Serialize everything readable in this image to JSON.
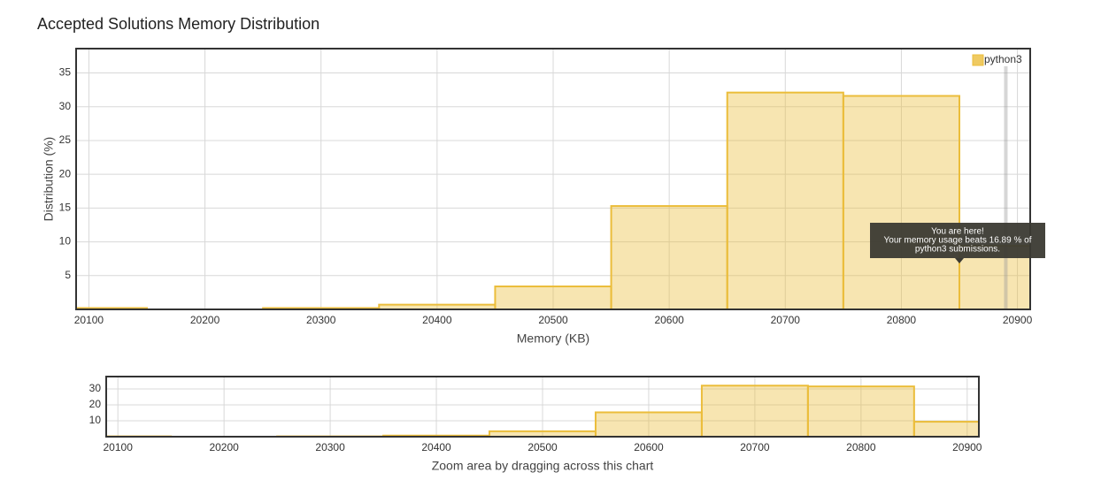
{
  "chart_data": [
    {
      "type": "histogram",
      "title": "Accepted Solutions Memory Distribution",
      "x_label": "Memory (KB)",
      "y_label": "Distribution (%)",
      "bins": [
        20050,
        20150,
        20250,
        20350,
        20450,
        20550,
        20650,
        20750,
        20850,
        20950
      ],
      "series": [
        {
          "name": "python3",
          "color": "#ebbd3b",
          "values": [
            0.2,
            0,
            0.2,
            0.7,
            3.4,
            15.3,
            32.1,
            31.6,
            9.4
          ]
        }
      ],
      "xlim": [
        20089,
        20911
      ],
      "xticks": [
        20100,
        20200,
        20300,
        20400,
        20500,
        20600,
        20700,
        20800,
        20900
      ],
      "ylim": [
        0,
        38.6
      ],
      "yticks": [
        5,
        10,
        15,
        20,
        25,
        30,
        35
      ],
      "grid": true,
      "legend": "top-right",
      "highlight_x": 20890,
      "tooltip": [
        "You are here!",
        "Your memory usage beats 16.89 % of",
        "python3 submissions."
      ]
    },
    {
      "type": "histogram",
      "x_label": "Zoom area by dragging across this chart",
      "bins": [
        20050,
        20150,
        20250,
        20350,
        20450,
        20550,
        20650,
        20750,
        20850,
        20950
      ],
      "series": [
        {
          "color": "#ebbd3b",
          "values": [
            0.2,
            0,
            0.2,
            0.7,
            3.4,
            15.3,
            32.1,
            31.6,
            9.4
          ]
        }
      ],
      "xlim": [
        20089,
        20911
      ],
      "xticks": [
        20100,
        20200,
        20300,
        20400,
        20500,
        20600,
        20700,
        20800,
        20900
      ],
      "ylim": [
        0,
        37.8
      ],
      "yticks": [
        10,
        20,
        30
      ],
      "grid": true
    }
  ]
}
